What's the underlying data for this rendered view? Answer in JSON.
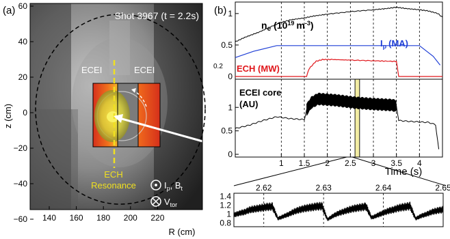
{
  "panel_a": {
    "label": "(a)",
    "shot_title": "Shot 3967 (t = 2.2s)",
    "ecei_left": "ECEI",
    "ecei_right": "ECEI",
    "ech_line1": "ECH",
    "ech_line2": "Resonance",
    "legend_ip": "I",
    "legend_ip_sub": "p",
    "legend_bt": ", B",
    "legend_bt_sub": "t",
    "legend_vtor": "V",
    "legend_vtor_sub": "tor",
    "xlabel": "R (cm)",
    "ylabel": "z (cm)",
    "xticks": [
      "140",
      "160",
      "180",
      "200",
      "220"
    ],
    "yticks": [
      "60",
      "40",
      "20",
      "0",
      "−20",
      "−40",
      "−60"
    ],
    "colors": {
      "ech_line": "#f0e020",
      "ecei_hot": "#e23a1e",
      "ecei_core": "#f4e63c"
    }
  },
  "panel_b": {
    "label": "(b)",
    "top_label_ne": "n",
    "top_label_ne_sub": "e",
    "top_label_ne_units": "(10",
    "top_label_ne_exp": "19",
    "top_label_ne_units2": "m",
    "top_label_ne_exp2": "-3",
    "top_label_ne_close": ")",
    "ip_label": "I",
    "ip_label_sub": "p",
    "ip_label_units": "(MA)",
    "ech_label": "ECH (MW)",
    "ech_scale_label": "0.2",
    "mid_label_line1": "ECEI core",
    "mid_label_line2": "(AU)",
    "xlabel": "Time (s)",
    "colors": {
      "ne": "#000000",
      "ip": "#1f3fd6",
      "ech": "#e0161b",
      "ecei": "#000000",
      "highlight": "#f2ec9a"
    }
  },
  "chart_data": [
    {
      "type": "line",
      "panel": "top",
      "xlim": [
        0,
        4.5
      ],
      "ylim": [
        0,
        1.15
      ],
      "yticks": [
        "0",
        "0.5",
        "1"
      ],
      "series": [
        {
          "name": "n_e (10^19 m^-3)",
          "x": [
            0,
            0.2,
            0.5,
            0.8,
            1.0,
            1.2,
            1.5,
            1.7,
            2.0,
            2.5,
            3.0,
            3.3,
            3.5,
            3.7,
            4.0,
            4.2,
            4.4,
            4.5
          ],
          "values": [
            0.55,
            0.62,
            0.7,
            0.8,
            0.86,
            0.9,
            0.93,
            0.96,
            0.99,
            1.03,
            1.06,
            1.08,
            1.1,
            1.08,
            1.06,
            1.04,
            1.0,
            0.94
          ]
        },
        {
          "name": "I_p (MA)",
          "x": [
            0,
            0.4,
            0.9,
            4.0,
            4.3,
            4.45
          ],
          "values": [
            0.3,
            0.4,
            0.49,
            0.49,
            0.32,
            0.18
          ]
        },
        {
          "name": "ECH (MW)",
          "x": [
            0,
            1.55,
            1.6,
            1.75,
            1.9,
            2.1,
            2.5,
            3.0,
            3.45,
            3.5,
            3.55,
            4.5
          ],
          "values": [
            0,
            0,
            0.12,
            0.24,
            0.27,
            0.27,
            0.26,
            0.25,
            0.24,
            0.24,
            0,
            0
          ]
        }
      ]
    },
    {
      "type": "line",
      "panel": "middle",
      "name": "ECEI core (AU)",
      "xlim": [
        0,
        4.5
      ],
      "ylim": [
        0,
        1.6
      ],
      "yticks": [
        "0",
        "0.5",
        "1"
      ],
      "xticks": [
        "1",
        "1.5",
        "2",
        "2.5",
        "3",
        "3.5",
        "4"
      ],
      "x": [
        0,
        0.3,
        0.6,
        0.9,
        1.2,
        1.5,
        1.55,
        1.65,
        1.8,
        2.2,
        2.6,
        3.0,
        3.4,
        3.5,
        3.55,
        3.8,
        4.2,
        4.35,
        4.42
      ],
      "values": [
        0.55,
        0.62,
        0.72,
        0.8,
        0.76,
        0.74,
        0.95,
        1.1,
        1.18,
        1.15,
        1.1,
        1.07,
        1.05,
        1.03,
        0.72,
        0.7,
        0.68,
        0.63,
        0.1
      ],
      "highlight_x": [
        2.6,
        2.7
      ]
    },
    {
      "type": "line",
      "panel": "inset",
      "xlim": [
        2.615,
        2.65
      ],
      "ylim": [
        0.75,
        1.45
      ],
      "xticks": [
        "2.62",
        "2.63",
        "2.64",
        "2.65"
      ],
      "yticks": [
        "1.4",
        "1.2",
        "1",
        "0.8"
      ],
      "approx_values": [
        0.98,
        1.02,
        1.05,
        1.1,
        1.12,
        1.14,
        1.16,
        1.17,
        0.9,
        0.95,
        1.0,
        1.06,
        1.1,
        1.13,
        1.15,
        1.17,
        1.18,
        0.88,
        0.96,
        1.02,
        1.06,
        1.1,
        1.13,
        1.15,
        1.17,
        0.92,
        0.97,
        1.02,
        1.07,
        1.1,
        1.14,
        1.16,
        1.18,
        0.9,
        0.96,
        1.0,
        1.05,
        1.08,
        1.1
      ]
    }
  ]
}
